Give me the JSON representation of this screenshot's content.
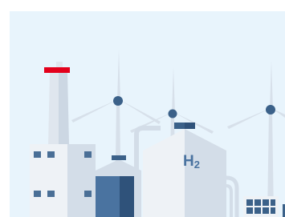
{
  "label": {
    "main": "H",
    "sub": "2"
  }
}
